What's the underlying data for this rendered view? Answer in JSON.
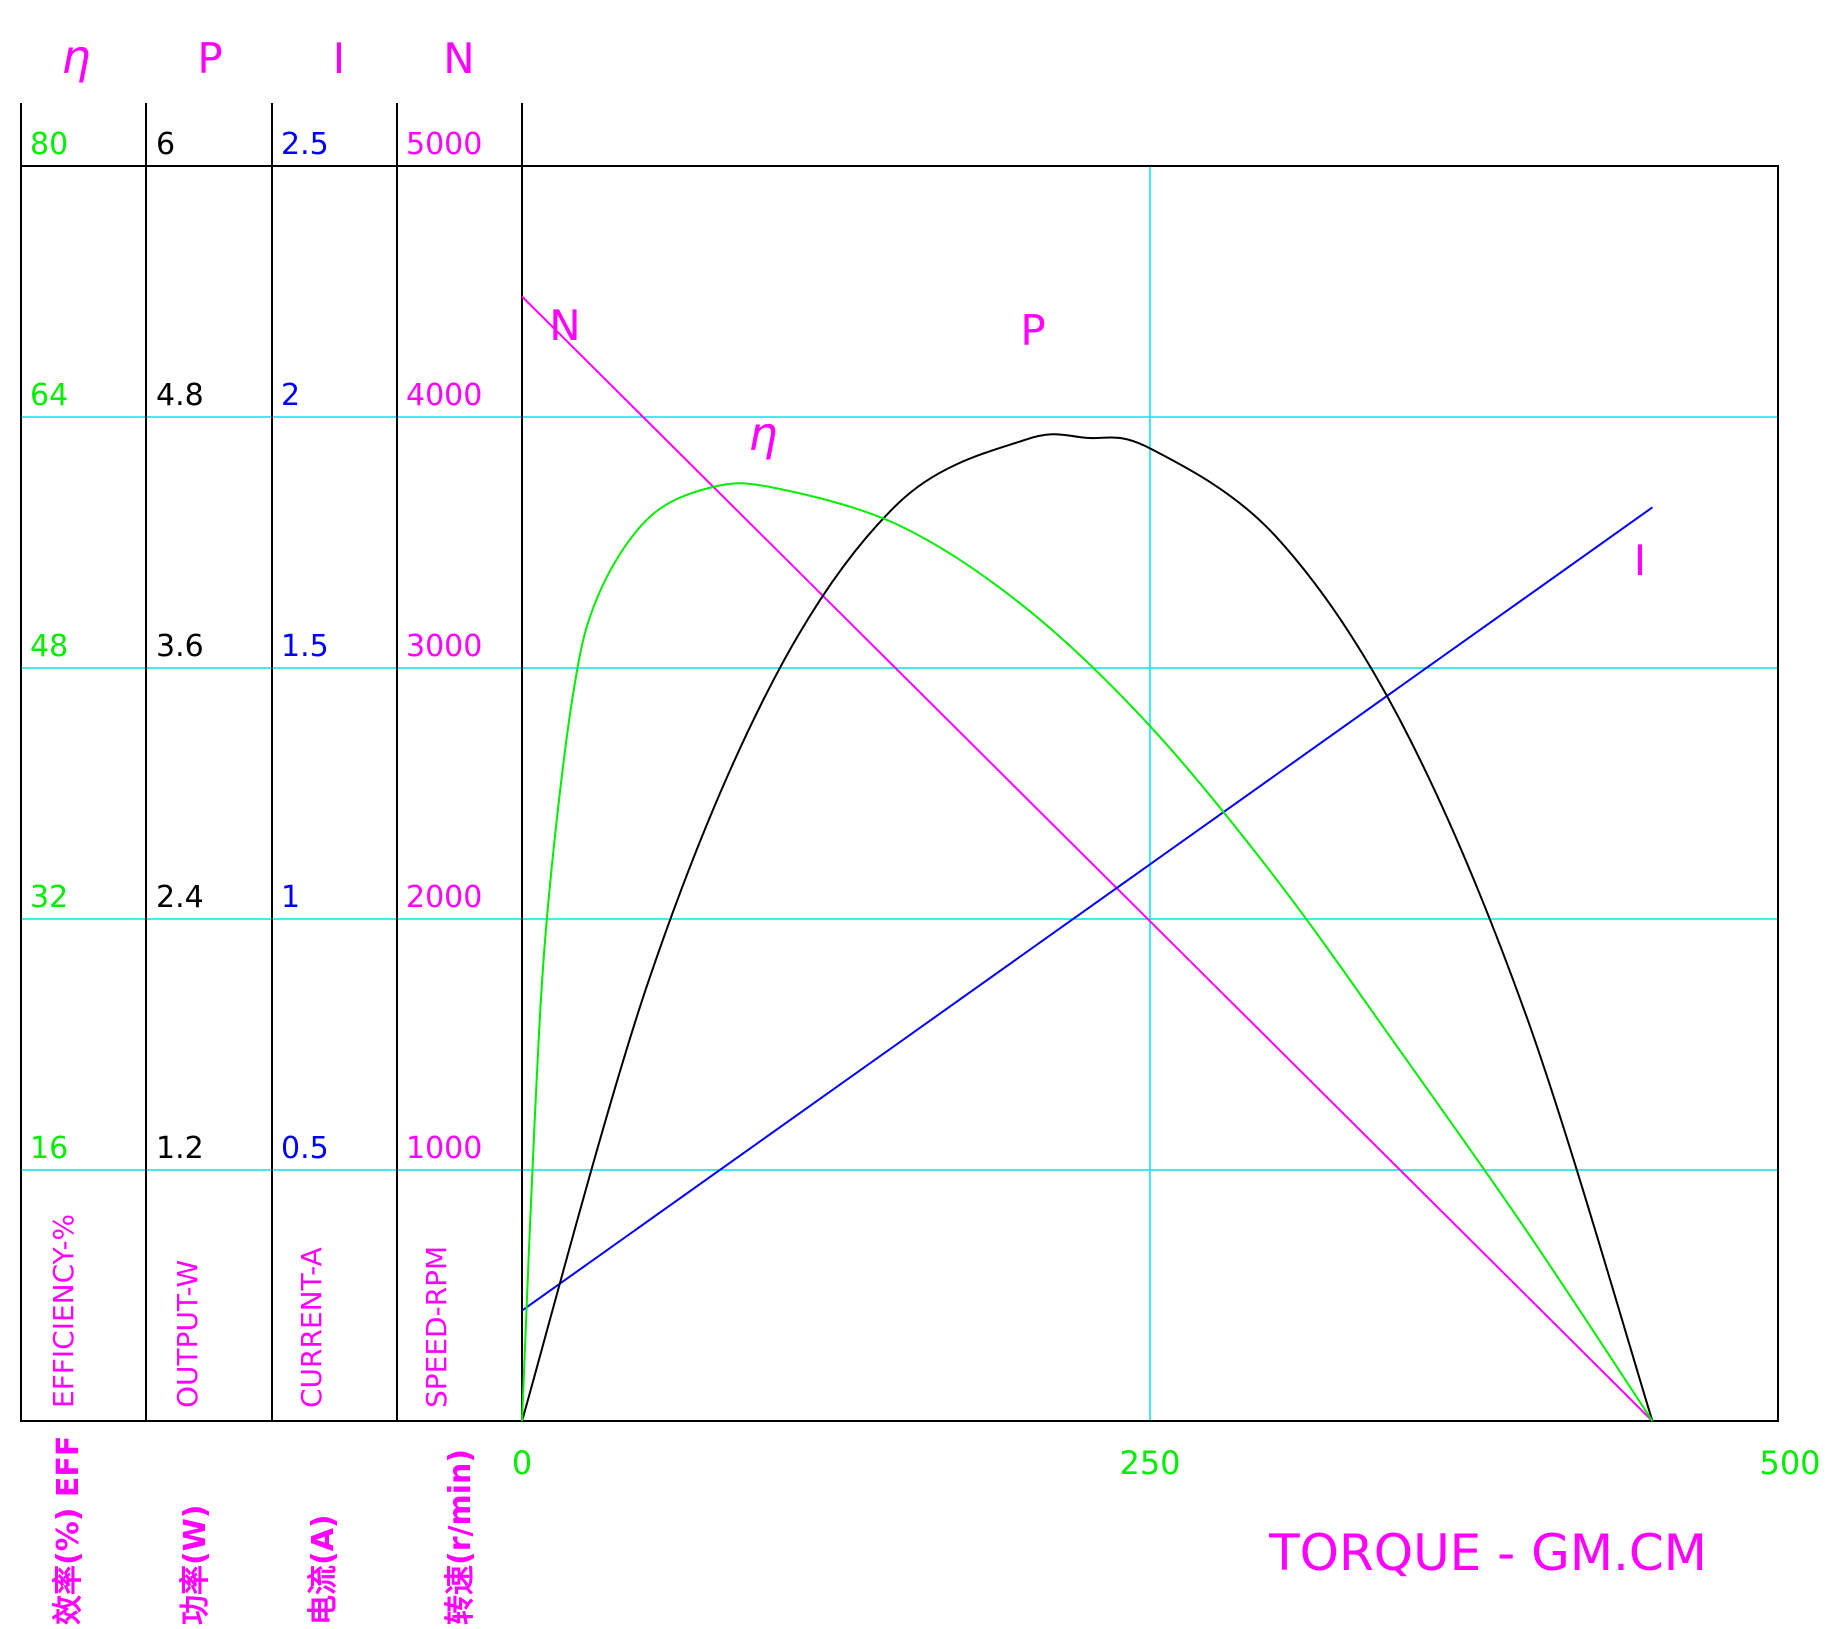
{
  "colors": {
    "eff": "#00ee00",
    "power": "#000000",
    "current": "#0000ff",
    "speed": "#ff00ff",
    "grid": "#00e5ee",
    "frame": "#000000",
    "torque_tick": "#00ee00",
    "torque_label": "#ff00ff"
  },
  "header": {
    "eff_symbol": "η",
    "power_symbol": "P",
    "current_symbol": "I",
    "speed_symbol": "N"
  },
  "axes": {
    "eff": {
      "title": "EFFICIENCY-%",
      "cn": "效率(%) EFF",
      "ticks": [
        "16",
        "32",
        "48",
        "64",
        "80"
      ]
    },
    "power": {
      "title": "OUTPUT-W",
      "cn": "功率(W)",
      "ticks": [
        "1.2",
        "2.4",
        "3.6",
        "4.8",
        "6"
      ]
    },
    "current": {
      "title": "CURRENT-A",
      "cn": "电流(A)",
      "ticks": [
        "0.5",
        "1",
        "1.5",
        "2",
        "2.5"
      ]
    },
    "speed": {
      "title": "SPEED-RPM",
      "cn": "转速(r/min)",
      "ticks": [
        "1000",
        "2000",
        "3000",
        "4000",
        "5000"
      ]
    },
    "torque": {
      "title": "TORQUE - GM.CM",
      "ticks": [
        "0",
        "250",
        "500"
      ]
    }
  },
  "chart_data": {
    "type": "line",
    "x_label": "TORQUE - GM.CM",
    "xlim": [
      0,
      500
    ],
    "grid": true,
    "y_axes": {
      "eff": {
        "unit": "%",
        "range": [
          0,
          80
        ]
      },
      "power": {
        "unit": "W",
        "range": [
          0,
          6
        ]
      },
      "current": {
        "unit": "A",
        "range": [
          0,
          2.5
        ]
      },
      "speed": {
        "unit": "RPM",
        "range": [
          0,
          5000
        ]
      }
    },
    "series": [
      {
        "name": "N",
        "axis": "speed",
        "x": [
          0,
          450
        ],
        "y": [
          4480,
          0
        ]
      },
      {
        "name": "I",
        "axis": "current",
        "x": [
          0,
          450
        ],
        "y": [
          0.22,
          1.82
        ]
      },
      {
        "name": "P",
        "axis": "power",
        "x": [
          0,
          50,
          100,
          150,
          200,
          225,
          250,
          300,
          350,
          400,
          450
        ],
        "y": [
          0,
          2.09,
          3.54,
          4.39,
          4.69,
          4.7,
          4.65,
          4.23,
          3.34,
          1.93,
          0
        ]
      },
      {
        "name": "η",
        "axis": "eff",
        "x": [
          0,
          5,
          10,
          20,
          30,
          50,
          75,
          100,
          150,
          200,
          250,
          300,
          350,
          400,
          450
        ],
        "y": [
          0,
          19,
          32.2,
          46,
          52.5,
          57.5,
          59.5,
          59.5,
          57.1,
          51.9,
          44.3,
          34.6,
          23.5,
          12.1,
          0
        ]
      }
    ]
  }
}
